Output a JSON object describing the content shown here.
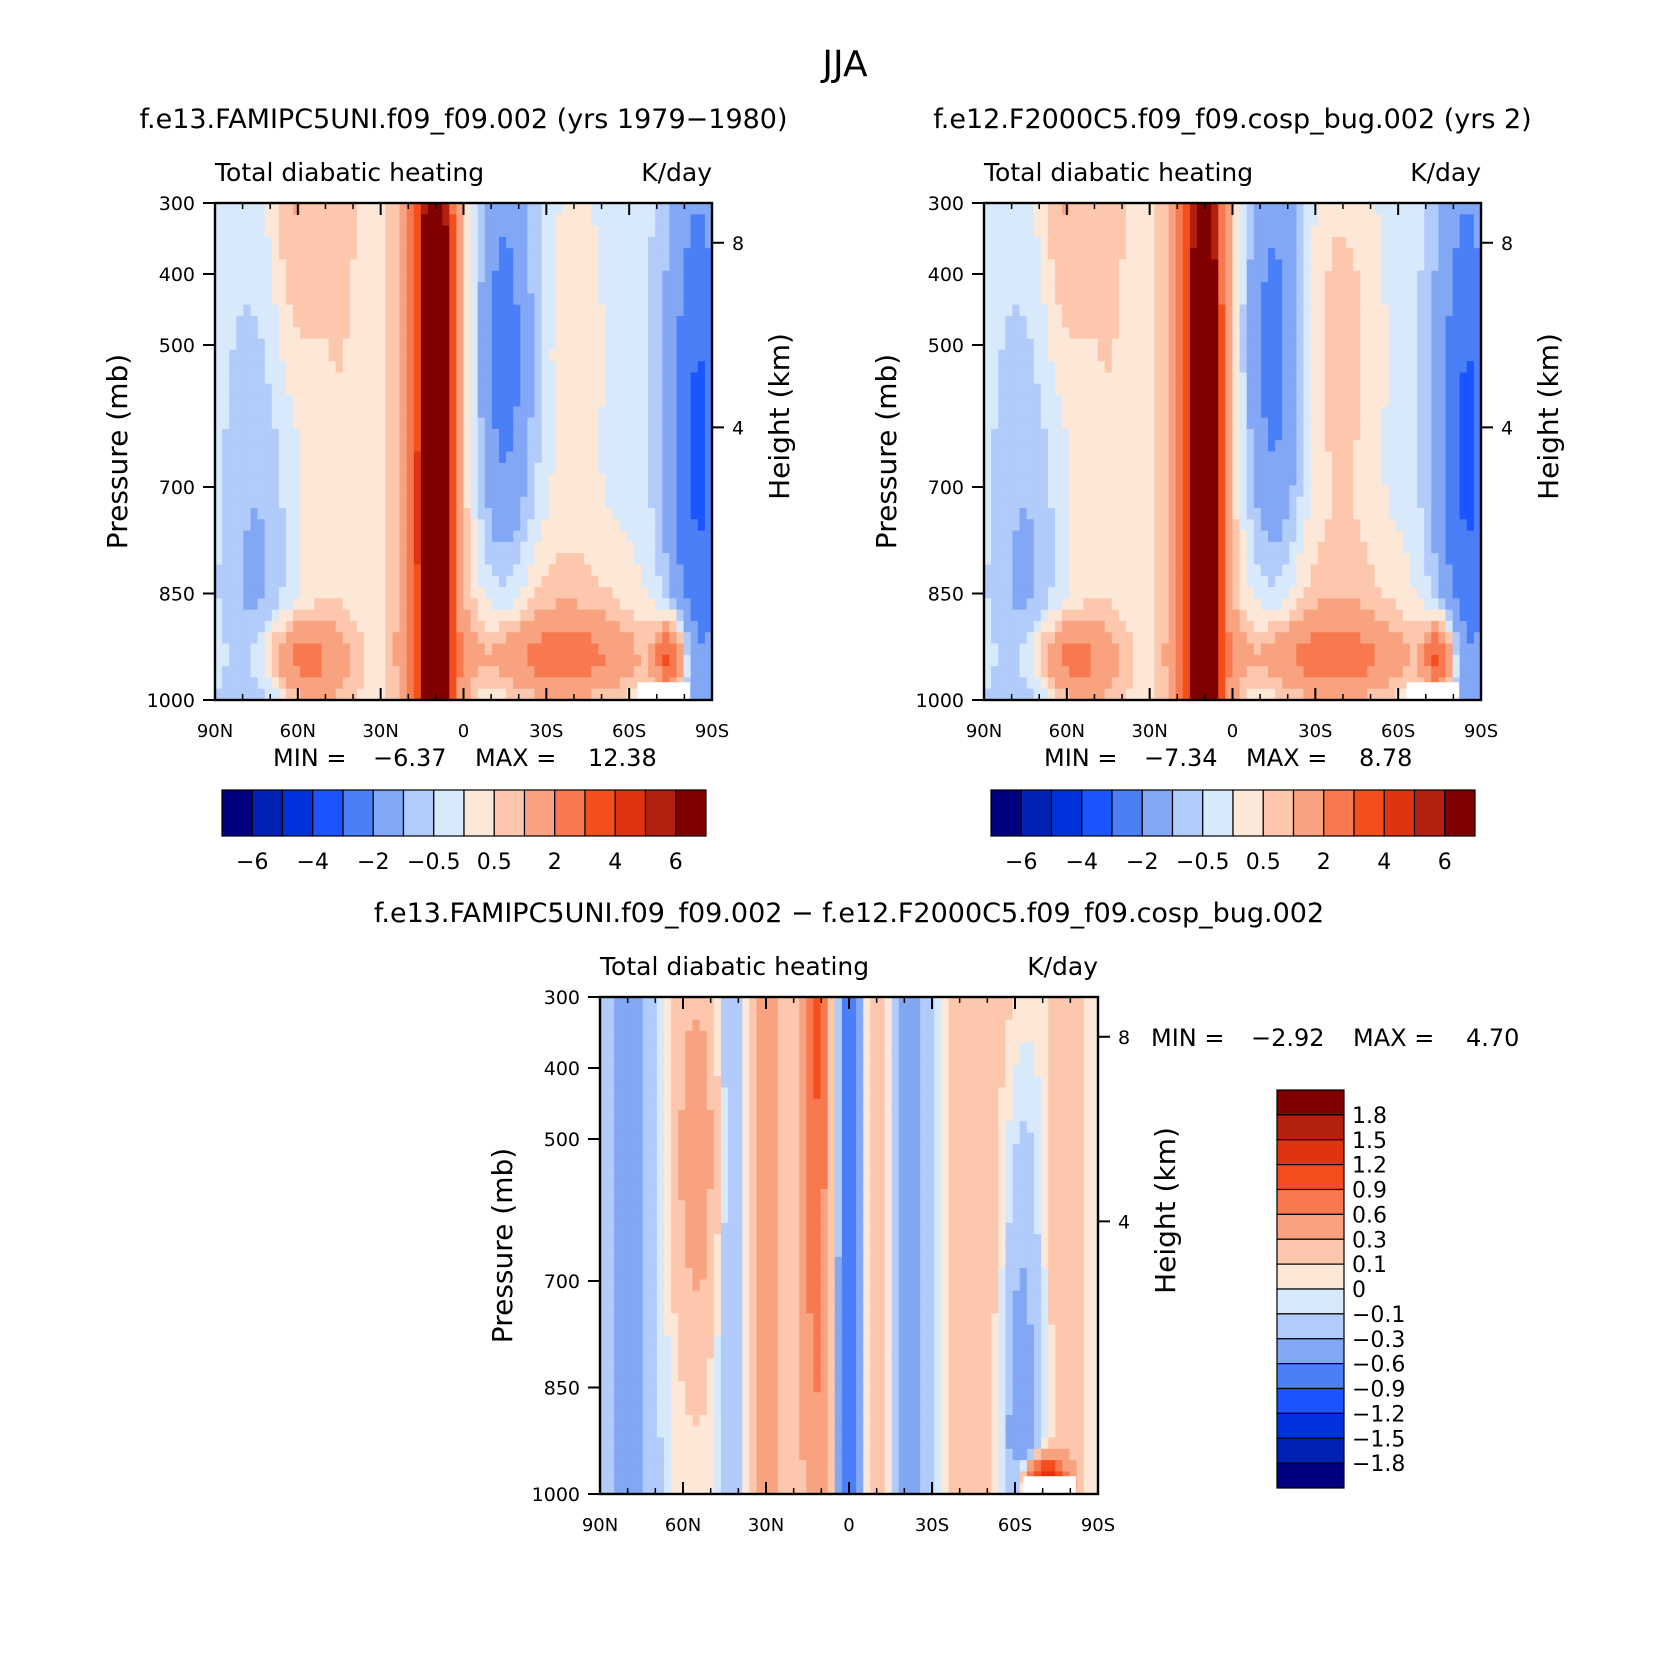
{
  "figure": {
    "title": "JJA",
    "colors": {
      "panel_palette": [
        "#000080",
        "#0021b3",
        "#0033dd",
        "#1a55ff",
        "#4a7ff7",
        "#82a7f5",
        "#b1cbfb",
        "#d7e9fb",
        "#fde8d7",
        "#fcc7ad",
        "#f8a27f",
        "#f8784f",
        "#f44e1d",
        "#df3311",
        "#b3200f",
        "#800000"
      ],
      "diff_palette": [
        "#000080",
        "#0021b3",
        "#0033dd",
        "#1a55ff",
        "#4a7ff7",
        "#82a7f5",
        "#b1cbfb",
        "#d7e9fb",
        "#fde8d7",
        "#fcc7ad",
        "#f8a27f",
        "#f8784f",
        "#f44e1d",
        "#df3311",
        "#b3200f",
        "#800000"
      ]
    }
  },
  "chart_data": [
    {
      "id": "panel-1",
      "type": "heatmap",
      "title": "f.e13.FAMIPC5UNI.f09_f09.002 (yrs 1979-1980)",
      "left_label": "Total diabatic heating",
      "right_label": "K/day",
      "ylabel": "Pressure (mb)",
      "y2label": "Height (km)",
      "xlabel": "",
      "x_ticks": [
        "90N",
        "60N",
        "30N",
        "0",
        "30S",
        "60S",
        "90S"
      ],
      "y_ticks": [
        "300",
        "400",
        "500",
        "700",
        "850",
        "1000"
      ],
      "y2_ticks": [
        "8",
        "4"
      ],
      "xlim": [
        90,
        -90
      ],
      "ylim": [
        300,
        1000
      ],
      "min_label": "MIN =",
      "min_value": "-6.37",
      "max_label": "MAX =",
      "max_value": "12.38",
      "colorbar": {
        "orientation": "horizontal",
        "levels": [
          -6,
          -5,
          -4,
          -3,
          -2,
          -1,
          -0.5,
          0,
          0.5,
          1,
          2,
          3,
          4,
          5,
          6
        ],
        "tick_labels": [
          "-6",
          "-4",
          "-2",
          "-0.5",
          "0.5",
          "2",
          "4",
          "6"
        ]
      }
    },
    {
      "id": "panel-2",
      "type": "heatmap",
      "title": "f.e12.F2000C5.f09_f09.cosp_bug.002 (yrs 2)",
      "left_label": "Total diabatic heating",
      "right_label": "K/day",
      "ylabel": "Pressure (mb)",
      "y2label": "Height (km)",
      "xlabel": "",
      "x_ticks": [
        "90N",
        "60N",
        "30N",
        "0",
        "30S",
        "60S",
        "90S"
      ],
      "y_ticks": [
        "300",
        "400",
        "500",
        "700",
        "850",
        "1000"
      ],
      "y2_ticks": [
        "8",
        "4"
      ],
      "xlim": [
        90,
        -90
      ],
      "ylim": [
        300,
        1000
      ],
      "min_label": "MIN =",
      "min_value": "-7.34",
      "max_label": "MAX =",
      "max_value": "8.78",
      "colorbar": {
        "orientation": "horizontal",
        "levels": [
          -6,
          -5,
          -4,
          -3,
          -2,
          -1,
          -0.5,
          0,
          0.5,
          1,
          2,
          3,
          4,
          5,
          6
        ],
        "tick_labels": [
          "-6",
          "-4",
          "-2",
          "-0.5",
          "0.5",
          "2",
          "4",
          "6"
        ]
      }
    },
    {
      "id": "panel-3",
      "type": "heatmap",
      "title": "f.e13.FAMIPC5UNI.f09_f09.002 - f.e12.F2000C5.f09_f09.cosp_bug.002",
      "left_label": "Total diabatic heating",
      "right_label": "K/day",
      "ylabel": "Pressure (mb)",
      "y2label": "Height (km)",
      "xlabel": "",
      "x_ticks": [
        "90N",
        "60N",
        "30N",
        "0",
        "30S",
        "60S",
        "90S"
      ],
      "y_ticks": [
        "300",
        "400",
        "500",
        "700",
        "850",
        "1000"
      ],
      "y2_ticks": [
        "8",
        "4"
      ],
      "xlim": [
        90,
        -90
      ],
      "ylim": [
        300,
        1000
      ],
      "min_label": "MIN =",
      "min_value": "-2.92",
      "max_label": "MAX =",
      "max_value": "4.70",
      "colorbar": {
        "orientation": "vertical",
        "levels": [
          1.8,
          1.5,
          1.2,
          0.9,
          0.6,
          0.3,
          0.1,
          0,
          -0.1,
          -0.3,
          -0.6,
          -0.9,
          -1.2,
          -1.5,
          -1.8
        ],
        "tick_labels": [
          "1.8",
          "1.5",
          "1.2",
          "0.9",
          "0.6",
          "0.3",
          "0.1",
          "0",
          "-0.1",
          "-0.3",
          "-0.6",
          "-0.9",
          "-1.2",
          "-1.5",
          "-1.8"
        ]
      }
    }
  ]
}
